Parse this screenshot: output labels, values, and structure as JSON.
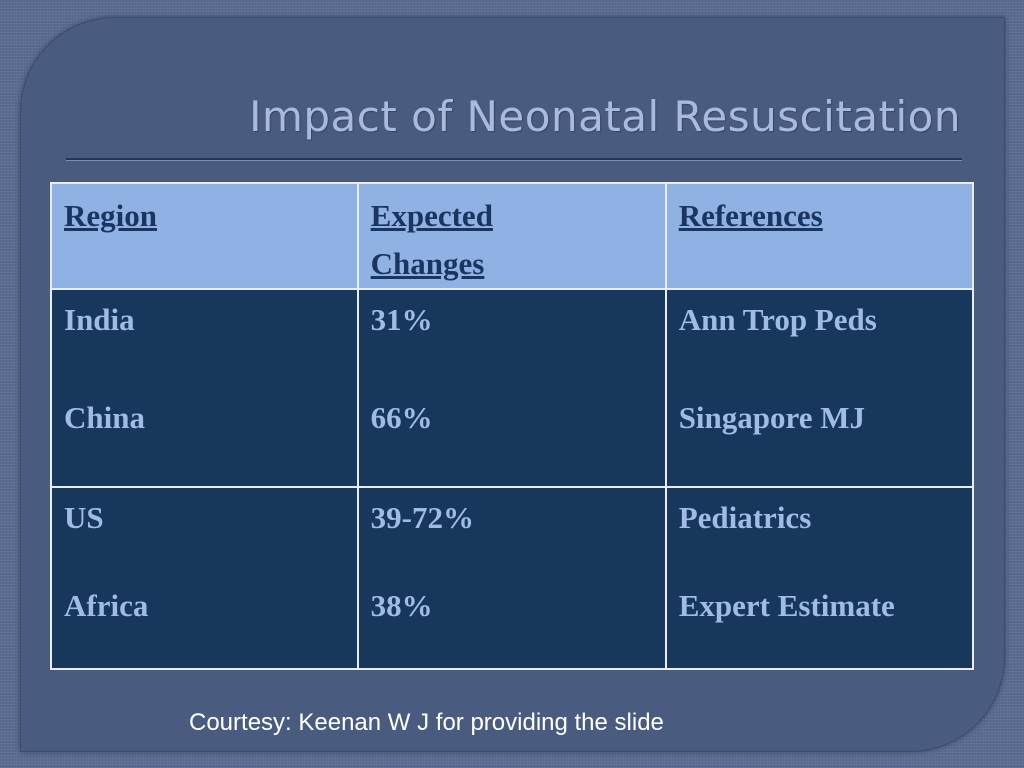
{
  "slide": {
    "title": "Impact of Neonatal Resuscitation",
    "courtesy": "Courtesy: Keenan W J for providing the slide"
  },
  "table": {
    "headers": [
      "Region",
      "Expected",
      "Changes",
      "References"
    ],
    "rows": [
      {
        "region": "India",
        "change": "31%",
        "reference": "Ann Trop Peds"
      },
      {
        "region": "China",
        "change": "66%",
        "reference": "Singapore MJ"
      },
      {
        "region": "US",
        "change": "39-72%",
        "reference": "Pediatrics"
      },
      {
        "region": "Africa",
        "change": "38%",
        "reference": "Expert Estimate"
      }
    ]
  },
  "colors": {
    "background": "#4a5b80",
    "header_fill": "#8fb1e3",
    "body_fill": "#18375c",
    "body_text": "#9fbbe6",
    "header_text": "#1a3560",
    "title_text": "#a9bbdc"
  }
}
